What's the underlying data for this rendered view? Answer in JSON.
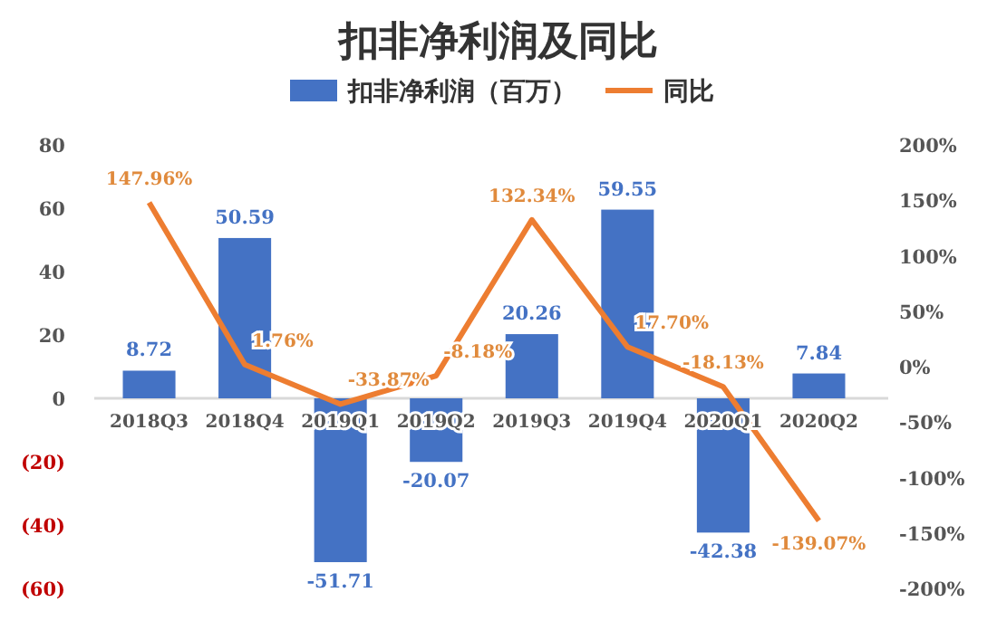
{
  "chart_data": {
    "type": "bar",
    "title": "扣非净利润及同比",
    "categories": [
      "2018Q3",
      "2018Q4",
      "2019Q1",
      "2019Q2",
      "2019Q3",
      "2019Q4",
      "2020Q1",
      "2020Q2"
    ],
    "series": [
      {
        "name": "扣非净利润（百万）",
        "color": "#4472c4",
        "values": [
          8.72,
          50.59,
          -51.71,
          -20.07,
          20.26,
          59.55,
          -42.38,
          7.84
        ],
        "value_labels": [
          "8.72",
          "50.59",
          "-51.71",
          "-20.07",
          "20.26",
          "59.55",
          "-42.38",
          "7.84"
        ]
      },
      {
        "name": "同比",
        "type": "line",
        "axis": "y2",
        "color": "#ed7d31",
        "values": [
          147.96,
          1.76,
          -33.87,
          -8.18,
          132.34,
          17.7,
          -18.13,
          -139.07
        ],
        "value_labels": [
          "147.96%",
          "1.76%",
          "-33.87%",
          "-8.18%",
          "132.34%",
          "17.70%",
          "-18.13%",
          "-139.07%"
        ]
      }
    ],
    "ylim": [
      -60,
      80
    ],
    "yticks": [
      {
        "value": -60,
        "label": "(60)"
      },
      {
        "value": -40,
        "label": "(40)"
      },
      {
        "value": -20,
        "label": "(20)"
      },
      0,
      20,
      40,
      60,
      80
    ],
    "y2lim": [
      -200,
      200
    ],
    "y2ticks": [
      {
        "value": -200,
        "label": "-200%"
      },
      {
        "value": -150,
        "label": "-150%"
      },
      {
        "value": -100,
        "label": "-100%"
      },
      {
        "value": -50,
        "label": "-50%"
      },
      {
        "value": 0,
        "label": "0%"
      },
      {
        "value": 50,
        "label": "50%"
      },
      {
        "value": 100,
        "label": "100%"
      },
      {
        "value": 150,
        "label": "150%"
      },
      {
        "value": 200,
        "label": "200%"
      }
    ],
    "legend": "top",
    "grid": false,
    "marker": "none",
    "line_style": "solid"
  }
}
